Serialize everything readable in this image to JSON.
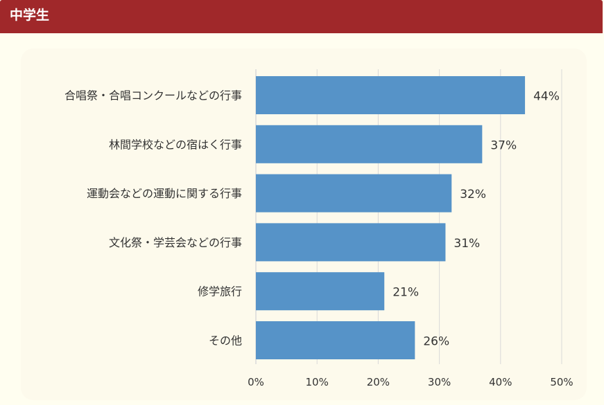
{
  "header": {
    "title": "中学生"
  },
  "colors": {
    "header_bg": "#a0282a",
    "bar": "#5693c8",
    "grid": "#d9d9d9"
  },
  "chart_data": {
    "type": "bar",
    "orientation": "horizontal",
    "categories": [
      "合唱祭・合唱コンクールなどの行事",
      "林間学校などの宿はく行事",
      "運動会などの運動に関する行事",
      "文化祭・学芸会などの行事",
      "修学旅行",
      "その他"
    ],
    "values": [
      44,
      37,
      32,
      31,
      21,
      26
    ],
    "value_labels": [
      "44%",
      "37%",
      "32%",
      "31%",
      "21%",
      "26%"
    ],
    "xlim": [
      0,
      50
    ],
    "xticks": [
      0,
      10,
      20,
      30,
      40,
      50
    ],
    "xtick_labels": [
      "0%",
      "10%",
      "20%",
      "30%",
      "40%",
      "50%"
    ],
    "grid": true
  }
}
